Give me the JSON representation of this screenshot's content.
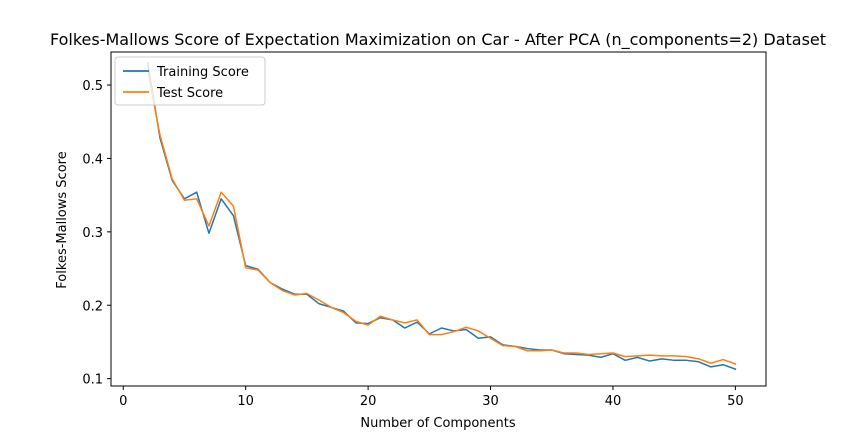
{
  "chart_data": {
    "type": "line",
    "title": "Folkes-Mallows Score of Expectation Maximization on Car - After PCA (n_components=2) Dataset",
    "xlabel": "Number of Components",
    "ylabel": "Folkes-Mallows Score",
    "xlim": [
      -1,
      52.5
    ],
    "ylim": [
      0.09,
      0.545
    ],
    "xticks": [
      0,
      10,
      20,
      30,
      40,
      50
    ],
    "yticks": [
      0.1,
      0.2,
      0.3,
      0.4,
      0.5
    ],
    "ytick_labels": [
      "0.1",
      "0.2",
      "0.3",
      "0.4",
      "0.5"
    ],
    "legend_position": "top-left",
    "x": [
      2,
      3,
      4,
      5,
      6,
      7,
      8,
      9,
      10,
      11,
      12,
      13,
      14,
      15,
      16,
      17,
      18,
      19,
      20,
      21,
      22,
      23,
      24,
      25,
      26,
      27,
      28,
      29,
      30,
      31,
      32,
      33,
      34,
      35,
      36,
      37,
      38,
      39,
      40,
      41,
      42,
      43,
      44,
      45,
      46,
      47,
      48,
      49,
      50
    ],
    "series": [
      {
        "name": "Training Score",
        "color": "#1f77b4",
        "values": [
          0.53,
          0.428,
          0.37,
          0.345,
          0.354,
          0.298,
          0.345,
          0.322,
          0.254,
          0.249,
          0.231,
          0.222,
          0.215,
          0.215,
          0.202,
          0.197,
          0.192,
          0.176,
          0.175,
          0.183,
          0.18,
          0.169,
          0.177,
          0.161,
          0.169,
          0.165,
          0.167,
          0.155,
          0.157,
          0.146,
          0.144,
          0.141,
          0.139,
          0.139,
          0.134,
          0.133,
          0.132,
          0.129,
          0.134,
          0.125,
          0.129,
          0.124,
          0.127,
          0.125,
          0.125,
          0.123,
          0.116,
          0.119,
          0.113
        ]
      },
      {
        "name": "Test Score",
        "color": "#ff7f0e",
        "values": [
          0.52,
          0.432,
          0.372,
          0.343,
          0.345,
          0.308,
          0.354,
          0.335,
          0.251,
          0.248,
          0.231,
          0.22,
          0.214,
          0.216,
          0.207,
          0.197,
          0.19,
          0.178,
          0.173,
          0.185,
          0.18,
          0.176,
          0.18,
          0.16,
          0.16,
          0.164,
          0.17,
          0.165,
          0.155,
          0.145,
          0.144,
          0.138,
          0.138,
          0.139,
          0.135,
          0.135,
          0.133,
          0.134,
          0.135,
          0.13,
          0.131,
          0.132,
          0.131,
          0.131,
          0.13,
          0.127,
          0.121,
          0.126,
          0.12
        ]
      }
    ]
  }
}
